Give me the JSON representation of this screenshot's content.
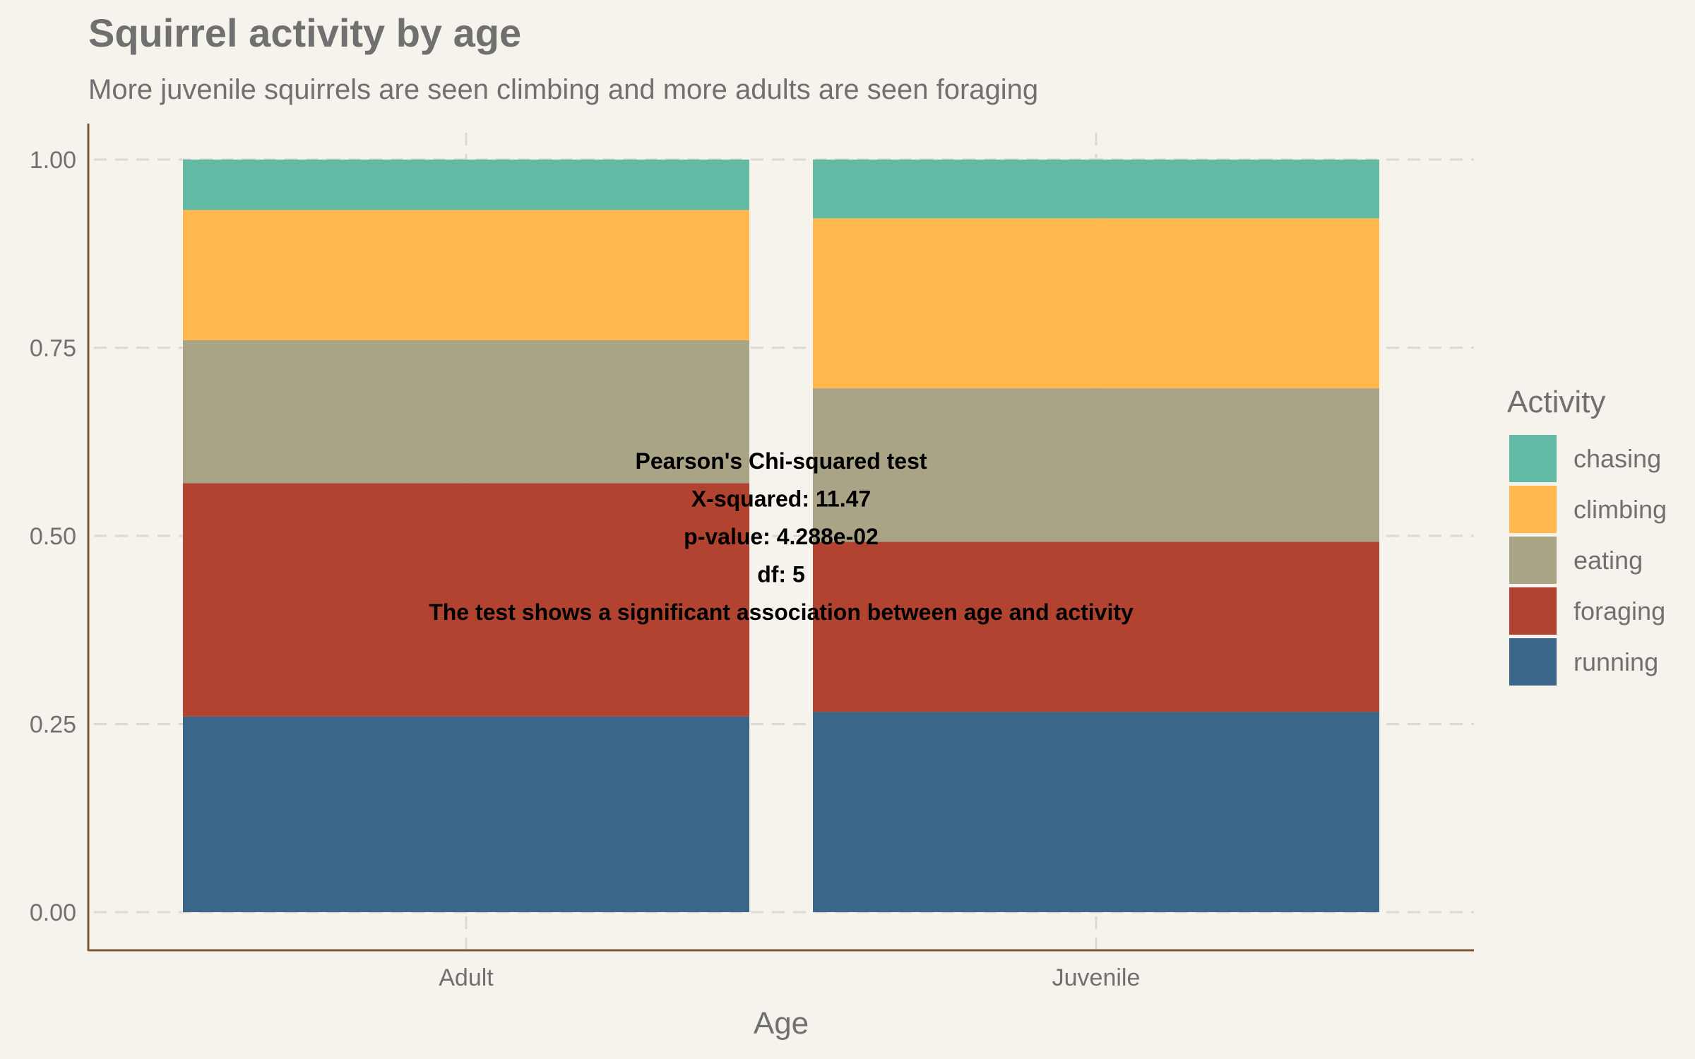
{
  "chart_data": {
    "type": "bar",
    "stacked": true,
    "title": "Squirrel activity by age",
    "subtitle": "More juvenile squirrels are seen climbing and more adults are seen foraging",
    "xlabel": "Age",
    "ylabel": "",
    "ylim": [
      0,
      1
    ],
    "yticks": [
      "0.00",
      "0.25",
      "0.50",
      "0.75",
      "1.00"
    ],
    "categories": [
      "Adult",
      "Juvenile"
    ],
    "legend_title": "Activity",
    "legend_position": "right",
    "grid": "dashed",
    "series": [
      {
        "name": "running",
        "color": "#3b6589",
        "values": [
          0.26,
          0.266
        ]
      },
      {
        "name": "foraging",
        "color": "#b14330",
        "values": [
          0.31,
          0.226
        ]
      },
      {
        "name": "eating",
        "color": "#a9a486",
        "values": [
          0.19,
          0.204
        ]
      },
      {
        "name": "climbing",
        "color": "#ffb74e",
        "values": [
          0.173,
          0.226
        ]
      },
      {
        "name": "chasing",
        "color": "#62baa5",
        "values": [
          0.067,
          0.078
        ]
      }
    ],
    "legend_order": [
      "chasing",
      "climbing",
      "eating",
      "foraging",
      "running"
    ],
    "annotation": [
      "Pearson's Chi-squared test",
      "X-squared: 11.47",
      "p-value: 4.288e-02",
      "df: 5",
      "The test shows a significant association between age and activity"
    ]
  }
}
